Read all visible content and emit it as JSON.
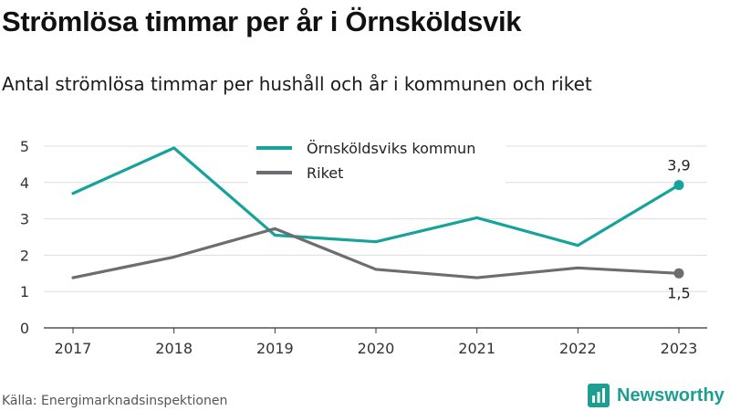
{
  "title": "Strömlösa timmar per år i Örnsköldsvik",
  "subtitle": "Antal strömlösa timmar per hushåll och år i kommunen och riket",
  "source": "Källa: Energimarknadsinspektionen",
  "brand": {
    "name": "Newsworthy",
    "color": "#1e9e93"
  },
  "chart_data": {
    "type": "line",
    "x": [
      "2017",
      "2018",
      "2019",
      "2020",
      "2021",
      "2022",
      "2023"
    ],
    "ylim": [
      0,
      5
    ],
    "yticks": [
      "0",
      "1",
      "2",
      "3",
      "4",
      "5"
    ],
    "grid": true,
    "legend_position": "top-center",
    "series": [
      {
        "name": "Örnsköldsviks kommun",
        "color": "#15a39a",
        "values": [
          3.7,
          4.95,
          2.55,
          2.37,
          3.03,
          2.27,
          3.93
        ],
        "end_label": "3,9"
      },
      {
        "name": "Riket",
        "color": "#6e6c70",
        "values": [
          1.38,
          1.95,
          2.73,
          1.61,
          1.38,
          1.65,
          1.5
        ],
        "end_label": "1,5"
      }
    ]
  }
}
